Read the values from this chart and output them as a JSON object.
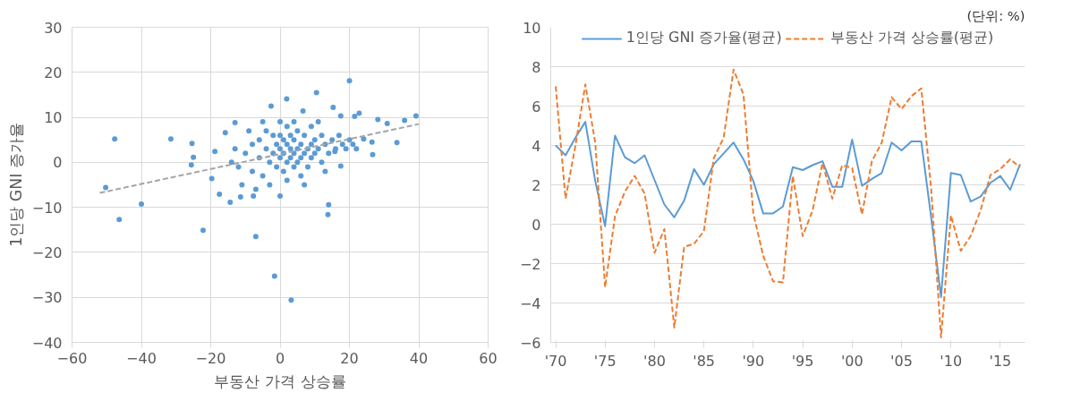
{
  "chart_data": [
    {
      "type": "scatter",
      "xlabel": "부동산 가격 상승률",
      "ylabel": "1인당 GNI 증가율",
      "xlim": [
        -60,
        60
      ],
      "ylim": [
        -40,
        30
      ],
      "xticks": [
        -60,
        -40,
        -20,
        0,
        20,
        40,
        60
      ],
      "yticks": [
        -40,
        -30,
        -20,
        -10,
        0,
        10,
        20,
        30
      ],
      "grid": true,
      "series": [
        {
          "type": "scatter",
          "marker": "circle",
          "color": "#5b9bd5",
          "x": [
            -47.7,
            -31.5,
            -50.3,
            -46.4,
            -40,
            -25.4,
            -25,
            -25.6,
            -22.2,
            -7,
            -1.6,
            3.2,
            14,
            13.8,
            20,
            10.5,
            1.9,
            -2.6,
            15.3,
            39.2,
            35.9,
            33.7,
            30.9,
            28.2,
            26.5,
            26.7,
            22.8,
            21.5,
            24.1,
            17.5,
            -13,
            -15.8,
            -18.8,
            -19.7,
            -17.5,
            -14.4,
            -11.4,
            -7.7,
            0,
            6.6,
            17.5,
            15.8,
            -10,
            -8,
            -8,
            -6,
            -6,
            -5,
            -4,
            -4,
            -3,
            -3,
            -2,
            -2,
            -1,
            -1,
            0,
            0,
            0,
            0,
            1,
            1,
            1,
            2,
            2,
            2,
            3,
            3,
            3,
            4,
            4,
            4,
            5,
            5,
            5,
            6,
            6,
            7,
            7,
            8,
            8,
            9,
            9,
            10,
            10,
            11,
            12,
            12,
            13,
            14,
            15,
            16,
            17,
            18,
            19,
            20,
            21,
            -12,
            -13,
            -11,
            -9,
            -7,
            2,
            6,
            9,
            11,
            4,
            -14,
            -5,
            7,
            13,
            22
          ],
          "values": [
            5.2,
            5.2,
            -5.6,
            -12.7,
            -9.3,
            4.2,
            1.1,
            -0.6,
            -15.1,
            -16.5,
            -25.3,
            -30.6,
            -9.4,
            -11.6,
            18.1,
            15.5,
            14.1,
            12.5,
            12.2,
            10.3,
            9.3,
            4.4,
            8.6,
            9.5,
            4.5,
            1.7,
            10.9,
            10.2,
            5.2,
            10.3,
            8.8,
            6.6,
            2.4,
            -3.6,
            -7.1,
            -8.9,
            -7.7,
            -7.5,
            -7.5,
            11.4,
            -0.8,
            2.4,
            2,
            4,
            -2,
            1,
            5,
            -3,
            3,
            7,
            0,
            -5,
            2,
            6,
            4,
            -1,
            1,
            3,
            6,
            9,
            -2,
            2,
            5,
            0,
            4,
            8,
            1,
            3,
            6,
            -1,
            2,
            5,
            0,
            3,
            7,
            1,
            4,
            2,
            6,
            -1,
            3,
            4,
            1,
            5,
            2,
            3,
            0,
            6,
            4,
            2,
            5,
            3,
            6,
            4,
            3,
            5,
            4,
            -1,
            3,
            -5,
            7,
            -6,
            -4,
            -3,
            8,
            9,
            9,
            0,
            9,
            -5,
            -2,
            3
          ]
        },
        {
          "type": "line",
          "marker": "none",
          "color": "#a5a5a5",
          "line_style": "dashed",
          "x": [
            -52,
            40
          ],
          "values": [
            -6.8,
            8.5
          ]
        }
      ]
    },
    {
      "type": "line",
      "grid": "y",
      "legend": "top",
      "annotations": [
        "(단위: %)"
      ],
      "xlim": [
        1969.5,
        2017.5
      ],
      "ylim": [
        -6,
        10
      ],
      "yticks": [
        -6,
        -4,
        -2,
        0,
        2,
        4,
        6,
        8,
        10
      ],
      "xticks": [
        {
          "value": 1970,
          "label": "'70"
        },
        {
          "value": 1975,
          "label": "'75"
        },
        {
          "value": 1980,
          "label": "'80"
        },
        {
          "value": 1985,
          "label": "'85"
        },
        {
          "value": 1990,
          "label": "'90"
        },
        {
          "value": 1995,
          "label": "'95"
        },
        {
          "value": 2000,
          "label": "'00"
        },
        {
          "value": 2005,
          "label": "'05"
        },
        {
          "value": 2010,
          "label": "'10"
        },
        {
          "value": 2015,
          "label": "'15"
        }
      ],
      "x": [
        1970,
        1971,
        1972,
        1973,
        1974,
        1975,
        1976,
        1977,
        1978,
        1979,
        1980,
        1981,
        1982,
        1983,
        1984,
        1985,
        1986,
        1987,
        1988,
        1989,
        1990,
        1991,
        1992,
        1993,
        1994,
        1995,
        1996,
        1997,
        1998,
        1999,
        2000,
        2001,
        2002,
        2003,
        2004,
        2005,
        2006,
        2007,
        2008,
        2009,
        2010,
        2011,
        2012,
        2013,
        2014,
        2015,
        2016,
        2017
      ],
      "series": [
        {
          "name": "1인당 GNI 증가율(평균)",
          "color": "#5b9bd5",
          "line_style": "solid",
          "values": [
            4.0,
            3.5,
            4.4,
            5.2,
            2.2,
            -0.1,
            4.5,
            3.4,
            3.1,
            3.5,
            2.25,
            1.0,
            0.35,
            1.2,
            2.8,
            2.0,
            3.05,
            3.6,
            4.15,
            3.3,
            2.2,
            0.55,
            0.55,
            0.9,
            2.9,
            2.75,
            3.0,
            3.2,
            1.9,
            1.9,
            4.3,
            1.95,
            2.3,
            2.6,
            4.15,
            3.75,
            4.2,
            4.2,
            0.35,
            -3.7,
            2.6,
            2.5,
            1.15,
            1.4,
            2.1,
            2.45,
            1.75,
            3.05
          ]
        },
        {
          "name": "부동산 가격 상승률(평균)",
          "color": "#ed7d31",
          "line_style": "dashed",
          "values": [
            7.0,
            1.3,
            4.0,
            7.1,
            4.15,
            -3.2,
            0.4,
            1.65,
            2.45,
            1.55,
            -1.45,
            -0.25,
            -5.25,
            -1.15,
            -1.0,
            -0.35,
            3.35,
            4.4,
            7.85,
            6.6,
            0.55,
            -1.6,
            -2.9,
            -2.95,
            2.45,
            -0.6,
            0.7,
            3.1,
            1.3,
            3.0,
            2.85,
            0.5,
            3.2,
            4.15,
            6.45,
            5.85,
            6.5,
            6.9,
            1.8,
            -5.75,
            0.45,
            -1.35,
            -0.6,
            0.7,
            2.5,
            2.8,
            3.3,
            2.9
          ]
        }
      ]
    }
  ]
}
